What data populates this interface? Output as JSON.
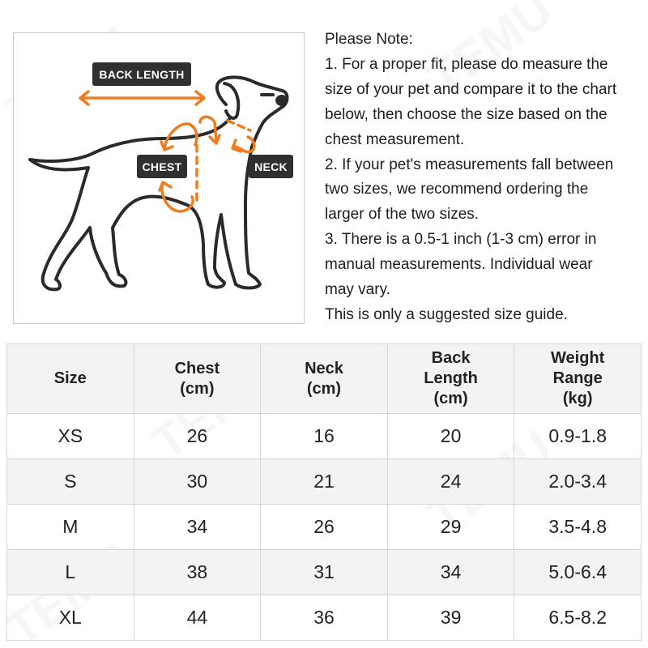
{
  "figure": {
    "labels": {
      "back_length": "BACK LENGTH",
      "chest": "CHEST",
      "neck": "NECK"
    },
    "accent_color": "#f07c1e",
    "tag_color": "#303030"
  },
  "note": {
    "lines": [
      "Please Note:",
      "1. For a proper fit, please do measure the",
      "size of your pet and compare it to the chart",
      "below, then choose the size based on the",
      "chest measurement.",
      "2. If your pet's measurements fall between",
      "two sizes, we recommend ordering the",
      "larger of the two sizes.",
      "3. There is a 0.5-1 inch (1-3 cm) error in",
      "manual measurements. Individual wear",
      "may vary.",
      "This is only a suggested size guide."
    ]
  },
  "table": {
    "headers": [
      "Size",
      "Chest\n(cm)",
      "Neck\n(cm)",
      "Back\nLength\n(cm)",
      "Weight\nRange\n(kg)"
    ],
    "rows": [
      [
        "XS",
        "26",
        "16",
        "20",
        "0.9-1.8"
      ],
      [
        "S",
        "30",
        "21",
        "24",
        "2.0-3.4"
      ],
      [
        "M",
        "34",
        "26",
        "29",
        "3.5-4.8"
      ],
      [
        "L",
        "38",
        "31",
        "34",
        "5.0-6.4"
      ],
      [
        "XL",
        "44",
        "36",
        "39",
        "6.5-8.2"
      ]
    ]
  },
  "watermark": "TEMU"
}
